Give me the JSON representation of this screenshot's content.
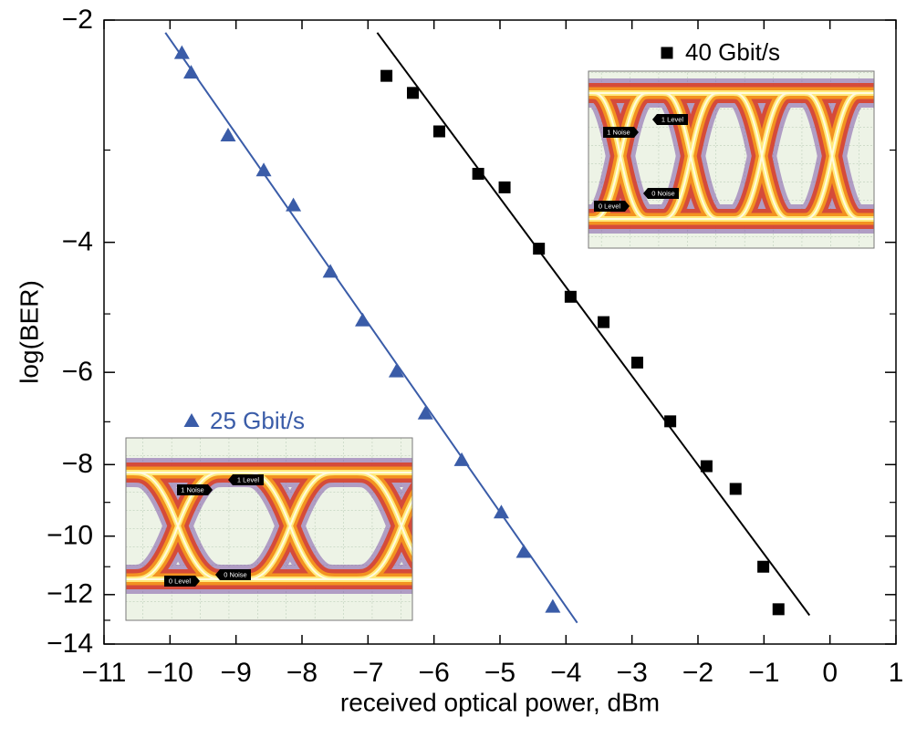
{
  "chart_data": {
    "type": "scatter",
    "xlabel": "received optical power, dBm",
    "ylabel": "log(BER)",
    "xlim": [
      -11,
      1
    ],
    "ylim": [
      -2,
      -14
    ],
    "yscale": "log-negative",
    "xticks": [
      {
        "value": -11,
        "label": "−11"
      },
      {
        "value": -10,
        "label": "−10"
      },
      {
        "value": -9,
        "label": "−9"
      },
      {
        "value": -8,
        "label": "−8"
      },
      {
        "value": -7,
        "label": "−7"
      },
      {
        "value": -6,
        "label": "−6"
      },
      {
        "value": -5,
        "label": "−5"
      },
      {
        "value": -4,
        "label": "−4"
      },
      {
        "value": -3,
        "label": "−3"
      },
      {
        "value": -2,
        "label": "−2"
      },
      {
        "value": -1,
        "label": "−1"
      },
      0,
      1
    ],
    "yticks": [
      {
        "value": -2,
        "label": "−2"
      },
      {
        "value": -4,
        "label": "−4"
      },
      {
        "value": -6,
        "label": "−6"
      },
      {
        "value": -8,
        "label": "−8"
      },
      {
        "value": -10,
        "label": "−10"
      },
      {
        "value": -12,
        "label": "−12"
      },
      {
        "value": -14,
        "label": "−14"
      }
    ],
    "yminorticks": [
      -3,
      -5,
      -7,
      -9,
      -11,
      -13
    ],
    "series": [
      {
        "name": "25 Gbit/s",
        "color": "#3a5ca8",
        "marker": "triangle",
        "x": [
          -9.82,
          -9.68,
          -9.12,
          -8.58,
          -8.13,
          -7.57,
          -7.08,
          -6.57,
          -6.13,
          -5.58,
          -4.98,
          -4.64,
          -4.2
        ],
        "values": [
          -2.22,
          -2.36,
          -2.87,
          -3.2,
          -3.57,
          -4.39,
          -5.11,
          -5.99,
          -6.83,
          -7.9,
          -9.3,
          -10.52,
          -12.48
        ],
        "fit": {
          "x": [
            -10.07,
            -3.83
          ],
          "y": [
            -2.08,
            -13.1
          ]
        },
        "inset_labels": [
          "1 Noise",
          "1 Level",
          "0 Noise",
          "0 Level"
        ]
      },
      {
        "name": "40 Gbit/s",
        "color": "#000000",
        "marker": "square",
        "x": [
          -6.72,
          -6.32,
          -5.92,
          -5.33,
          -4.93,
          -4.41,
          -3.93,
          -3.43,
          -2.92,
          -2.42,
          -1.87,
          -1.43,
          -1.01,
          -0.78
        ],
        "values": [
          -2.38,
          -2.51,
          -2.83,
          -3.23,
          -3.37,
          -4.08,
          -4.74,
          -5.13,
          -5.82,
          -6.99,
          -8.04,
          -8.63,
          -11.0,
          -12.56
        ],
        "fit": {
          "x": [
            -6.86,
            -0.31
          ],
          "y": [
            -2.08,
            -12.8
          ]
        },
        "inset_labels": [
          "1 Noise",
          "1 Level",
          "0 Noise",
          "0 Level"
        ]
      }
    ]
  }
}
